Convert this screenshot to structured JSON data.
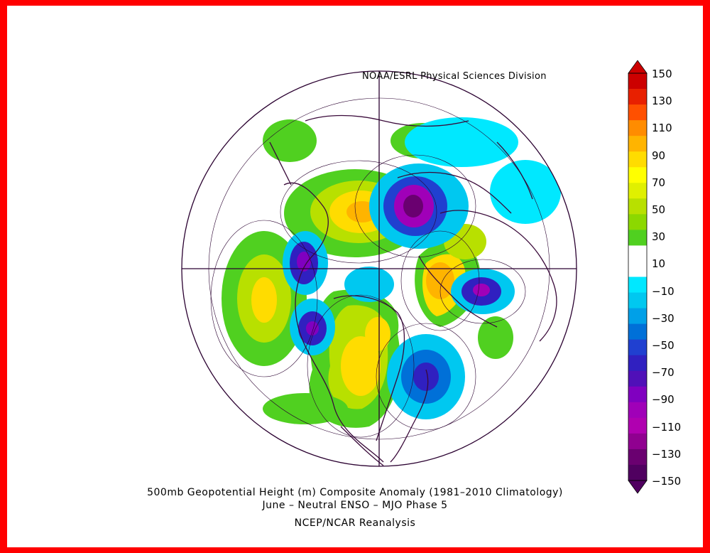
{
  "map": {
    "credit": "NOAA/ESRL Physical Sciences Division",
    "title_line1": "500mb Geopotential Height (m) Composite Anomaly (1981–2010 Climatology)",
    "title_line2": "June – Neutral ENSO – MJO Phase 5",
    "source": "NCEP/NCAR Reanalysis",
    "projection": "north-polar-stereographic",
    "colors": {
      "frame": "#ff0000",
      "coastline": "#3a0a3a",
      "contour": "#2a0030"
    }
  },
  "colorbar": {
    "labels": [
      "150",
      "130",
      "110",
      "90",
      "70",
      "50",
      "30",
      "10",
      "−10",
      "−30",
      "−50",
      "−70",
      "−90",
      "−110",
      "−130",
      "−150"
    ],
    "colors": [
      "#cc0000",
      "#e82000",
      "#ff5000",
      "#ff8c00",
      "#ffb400",
      "#ffdc00",
      "#ffff00",
      "#e0f000",
      "#b8e000",
      "#8cd800",
      "#50d020",
      "#ffffff",
      "#ffffff",
      "#00e8ff",
      "#00c8f0",
      "#00a0e8",
      "#0070d8",
      "#2040d0",
      "#3020c0",
      "#5010b8",
      "#8000c0",
      "#a000b8",
      "#b000b0",
      "#900090",
      "#6a0070",
      "#500060"
    ]
  }
}
